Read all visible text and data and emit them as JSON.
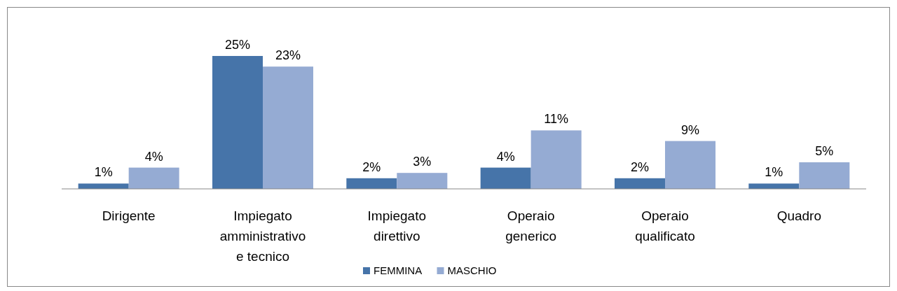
{
  "chart_data": {
    "type": "bar",
    "categories": [
      "Dirigente",
      "Impiegato\namministrativo\ne tecnico",
      "Impiegato\ndirettivo",
      "Operaio\ngenerico",
      "Operaio\nqualificato",
      "Quadro"
    ],
    "series": [
      {
        "name": "FEMMINA",
        "color": "#4674a9",
        "values": [
          1,
          25,
          2,
          4,
          2,
          1
        ],
        "value_labels": [
          "1%",
          "25%",
          "2%",
          "4%",
          "2%",
          "1%"
        ]
      },
      {
        "name": "MASCHIO",
        "color": "#95abd3",
        "values": [
          4,
          23,
          3,
          11,
          9,
          5
        ],
        "value_labels": [
          "4%",
          "23%",
          "3%",
          "11%",
          "9%",
          "5%"
        ]
      }
    ],
    "legend": "bottom"
  }
}
